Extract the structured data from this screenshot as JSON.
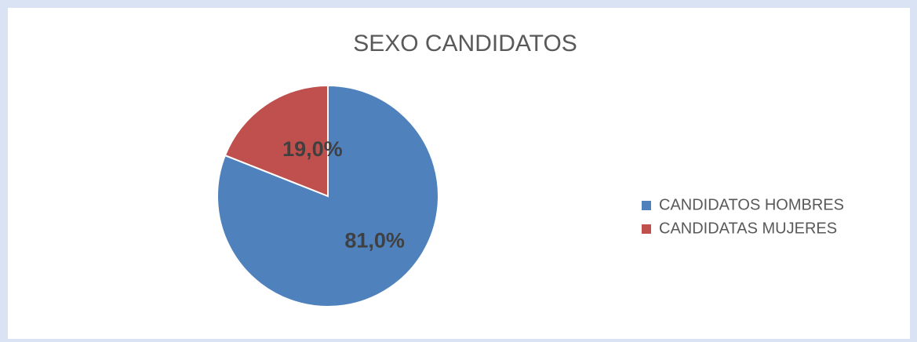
{
  "chart_data": {
    "type": "pie",
    "title": "SEXO CANDIDATOS",
    "categories": [
      "CANDIDATOS HOMBRES",
      "CANDIDATAS MUJERES"
    ],
    "values": [
      81.0,
      19.0
    ],
    "value_labels": [
      "81,0%",
      "19,0%"
    ],
    "colors": [
      "#4f81bd",
      "#c0504d"
    ],
    "legend": "right"
  }
}
